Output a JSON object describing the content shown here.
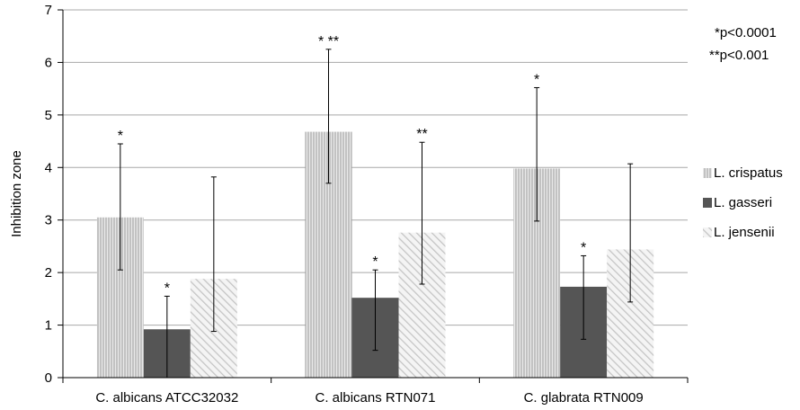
{
  "chart_data": {
    "type": "bar",
    "ylabel": "Inhibition zone",
    "xlabel": "",
    "ylim": [
      0,
      7
    ],
    "yticks": [
      "0",
      "1",
      "2",
      "3",
      "4",
      "5",
      "6",
      "7"
    ],
    "grid": true,
    "legend_position": "right",
    "categories": [
      "C. albicans ATCC32032",
      "C. albicans RTN071",
      "C. glabrata RTN009"
    ],
    "series": [
      {
        "name": "L. crispatus",
        "style": "vertical-lines",
        "color": "#bdbdbd",
        "values": [
          3.05,
          4.68,
          3.98
        ],
        "err_low": [
          2.05,
          3.7,
          2.98
        ],
        "err_high": [
          4.45,
          6.25,
          5.52
        ],
        "sig": [
          "*",
          "* **",
          "*"
        ]
      },
      {
        "name": "L. gasseri",
        "style": "solid",
        "color": "#555555",
        "values": [
          0.92,
          1.52,
          1.73
        ],
        "err_low": [
          0.0,
          0.52,
          0.73
        ],
        "err_high": [
          1.55,
          2.05,
          2.32
        ],
        "sig": [
          "*",
          "*",
          "*"
        ]
      },
      {
        "name": "L. jensenii",
        "style": "diagonal",
        "color": "#d0d0d0",
        "values": [
          1.88,
          2.76,
          2.44
        ],
        "err_low": [
          0.88,
          1.78,
          1.44
        ],
        "err_high": [
          3.82,
          4.48,
          4.07
        ],
        "sig": [
          "",
          "**",
          ""
        ]
      }
    ],
    "annotations": [
      "*p<0.0001",
      "**p<0.001"
    ]
  }
}
